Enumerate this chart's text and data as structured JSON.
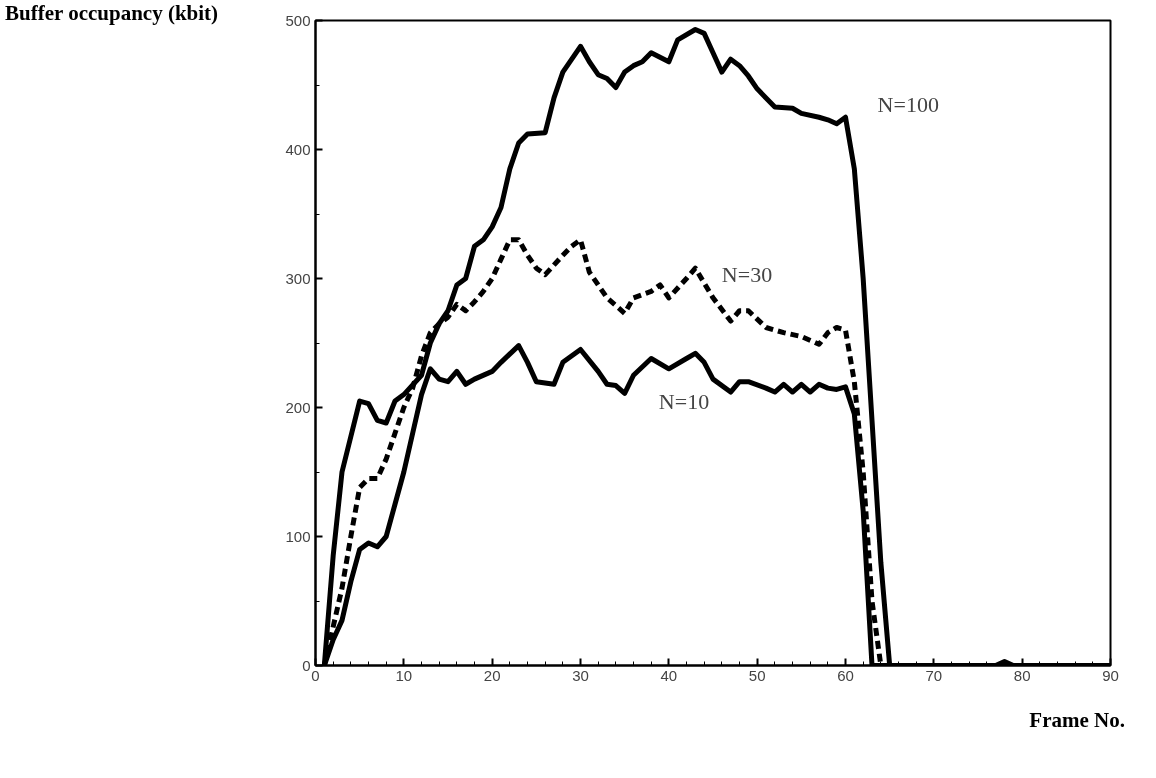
{
  "chart_data": {
    "type": "line",
    "xlabel": "Frame No.",
    "ylabel": "Buffer occupancy (kbit)",
    "xlim": [
      0,
      90
    ],
    "ylim": [
      0,
      500
    ],
    "xticks": [
      0,
      {
        "value": 2,
        "label": null
      },
      {
        "value": 4,
        "label": null
      },
      {
        "value": 6,
        "label": null
      },
      {
        "value": 8,
        "label": null
      },
      10,
      {
        "value": 12,
        "label": null
      },
      {
        "value": 14,
        "label": null
      },
      {
        "value": 16,
        "label": null
      },
      {
        "value": 18,
        "label": null
      },
      20,
      {
        "value": 22,
        "label": null
      },
      {
        "value": 24,
        "label": null
      },
      {
        "value": 26,
        "label": null
      },
      {
        "value": 28,
        "label": null
      },
      30,
      {
        "value": 32,
        "label": null
      },
      {
        "value": 34,
        "label": null
      },
      {
        "value": 36,
        "label": null
      },
      {
        "value": 38,
        "label": null
      },
      40,
      {
        "value": 42,
        "label": null
      },
      {
        "value": 44,
        "label": null
      },
      {
        "value": 46,
        "label": null
      },
      {
        "value": 48,
        "label": null
      },
      50,
      {
        "value": 52,
        "label": null
      },
      {
        "value": 54,
        "label": null
      },
      {
        "value": 56,
        "label": null
      },
      {
        "value": 58,
        "label": null
      },
      60,
      {
        "value": 62,
        "label": null
      },
      {
        "value": 64,
        "label": null
      },
      {
        "value": 66,
        "label": null
      },
      {
        "value": 68,
        "label": null
      },
      70,
      {
        "value": 72,
        "label": null
      },
      {
        "value": 74,
        "label": null
      },
      {
        "value": 76,
        "label": null
      },
      {
        "value": 78,
        "label": null
      },
      80,
      {
        "value": 82,
        "label": null
      },
      {
        "value": 84,
        "label": null
      },
      {
        "value": 86,
        "label": null
      },
      {
        "value": 88,
        "label": null
      },
      90
    ],
    "yticks": [
      0,
      {
        "value": 50,
        "label": null
      },
      100,
      {
        "value": 150,
        "label": null
      },
      200,
      {
        "value": 250,
        "label": null
      },
      300,
      {
        "value": 350,
        "label": null
      },
      400,
      {
        "value": 450,
        "label": null
      },
      500
    ],
    "grid": false,
    "marker": "none",
    "series": [
      {
        "name": "N=100",
        "color": "#000000",
        "line_style": "solid",
        "x": [
          1,
          2,
          3,
          5,
          6,
          7,
          8,
          9,
          10,
          12,
          13,
          14,
          15,
          16,
          17,
          18,
          19,
          20,
          21,
          22,
          23,
          24,
          26,
          27,
          28,
          30,
          31,
          32,
          33,
          34,
          35,
          36,
          37,
          38,
          40,
          41,
          43,
          44,
          45,
          46,
          47,
          48,
          49,
          50,
          51,
          52,
          54,
          55,
          57,
          58,
          59,
          60,
          61,
          62,
          63,
          64,
          65,
          70,
          77,
          78,
          79,
          90
        ],
        "values": [
          0,
          85,
          150,
          205,
          203,
          190,
          188,
          205,
          210,
          225,
          250,
          265,
          275,
          295,
          300,
          325,
          330,
          340,
          355,
          385,
          405,
          412,
          413,
          440,
          460,
          480,
          468,
          458,
          455,
          448,
          460,
          465,
          468,
          475,
          468,
          485,
          493,
          490,
          475,
          460,
          470,
          465,
          457,
          447,
          440,
          433,
          432,
          428,
          425,
          423,
          420,
          425,
          385,
          300,
          190,
          80,
          0,
          0,
          0,
          3,
          0,
          0
        ]
      },
      {
        "name": "N=30",
        "color": "#000000",
        "line_style": "dashed",
        "x": [
          1,
          2,
          3,
          4,
          5,
          6,
          7,
          8,
          9,
          10,
          11,
          12,
          13,
          14,
          15,
          16,
          17,
          18,
          19,
          20,
          21,
          22,
          23,
          24,
          25,
          26,
          28,
          29,
          30,
          31,
          33,
          35,
          36,
          38,
          39,
          40,
          42,
          43,
          45,
          47,
          48,
          49,
          51,
          53,
          55,
          57,
          58,
          59,
          60,
          61,
          62,
          63,
          64,
          70,
          90
        ],
        "values": [
          0,
          30,
          60,
          100,
          138,
          145,
          145,
          160,
          180,
          200,
          215,
          240,
          258,
          265,
          270,
          280,
          275,
          282,
          290,
          300,
          315,
          330,
          330,
          318,
          308,
          303,
          318,
          325,
          330,
          305,
          285,
          273,
          285,
          290,
          295,
          285,
          300,
          308,
          285,
          267,
          275,
          275,
          262,
          258,
          255,
          249,
          258,
          262,
          260,
          220,
          150,
          50,
          0,
          0,
          0
        ]
      },
      {
        "name": "N=10",
        "color": "#000000",
        "line_style": "solid",
        "x": [
          1,
          2,
          3,
          4,
          5,
          6,
          7,
          8,
          9,
          10,
          11,
          12,
          13,
          14,
          15,
          16,
          17,
          18,
          20,
          21,
          23,
          24,
          25,
          27,
          28,
          30,
          32,
          33,
          34,
          35,
          36,
          38,
          40,
          42,
          43,
          44,
          45,
          47,
          48,
          49,
          51,
          52,
          53,
          54,
          55,
          56,
          57,
          58,
          59,
          60,
          61,
          62,
          63,
          70,
          90
        ],
        "values": [
          0,
          20,
          35,
          65,
          90,
          95,
          92,
          100,
          125,
          150,
          180,
          210,
          230,
          222,
          220,
          228,
          218,
          222,
          228,
          235,
          248,
          235,
          220,
          218,
          235,
          245,
          228,
          218,
          217,
          211,
          225,
          238,
          230,
          238,
          242,
          235,
          222,
          212,
          220,
          220,
          215,
          212,
          218,
          212,
          218,
          212,
          218,
          215,
          214,
          216,
          195,
          120,
          0,
          0,
          0
        ]
      }
    ]
  }
}
